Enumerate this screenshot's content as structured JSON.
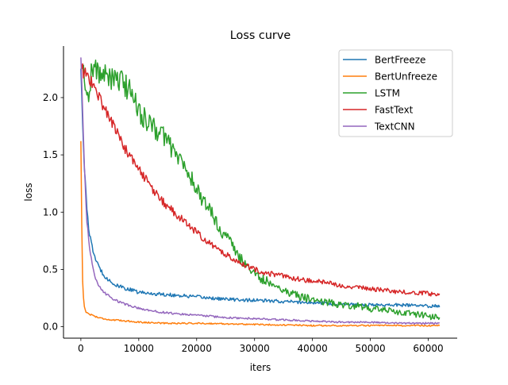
{
  "chart_data": {
    "type": "line",
    "title": "Loss curve",
    "xlabel": "iters",
    "ylabel": "loss",
    "xlim": [
      -3000,
      65000
    ],
    "ylim": [
      -0.1,
      2.45
    ],
    "xticks": [
      0,
      10000,
      20000,
      30000,
      40000,
      50000,
      60000
    ],
    "yticks": [
      0.0,
      0.5,
      1.0,
      1.5,
      2.0
    ],
    "xtick_labels": [
      "0",
      "10000",
      "20000",
      "30000",
      "40000",
      "50000",
      "60000"
    ],
    "ytick_labels": [
      "0.0",
      "0.5",
      "1.0",
      "1.5",
      "2.0"
    ],
    "grid": false,
    "legend_position": "top-right",
    "series": [
      {
        "name": "BertFreeze",
        "color": "#1f77b4",
        "x": [
          0,
          500,
          1000,
          1500,
          2000,
          2500,
          3000,
          4000,
          5000,
          6000,
          8000,
          10000,
          12000,
          15000,
          20000,
          25000,
          30000,
          35000,
          40000,
          45000,
          50000,
          55000,
          60000,
          62000
        ],
        "y": [
          2.25,
          1.5,
          1.05,
          0.8,
          0.68,
          0.6,
          0.53,
          0.45,
          0.4,
          0.36,
          0.33,
          0.3,
          0.29,
          0.28,
          0.26,
          0.24,
          0.23,
          0.22,
          0.21,
          0.2,
          0.19,
          0.19,
          0.18,
          0.18
        ]
      },
      {
        "name": "BertUnfreeze",
        "color": "#ff7f0e",
        "x": [
          0,
          150,
          300,
          500,
          800,
          1000,
          2000,
          3000,
          5000,
          8000,
          10000,
          15000,
          20000,
          30000,
          40000,
          50000,
          60000,
          62000
        ],
        "y": [
          1.62,
          0.9,
          0.4,
          0.2,
          0.14,
          0.12,
          0.1,
          0.08,
          0.06,
          0.05,
          0.04,
          0.03,
          0.03,
          0.02,
          0.01,
          0.01,
          0.01,
          0.01
        ]
      },
      {
        "name": "LSTM",
        "color": "#2ca02c",
        "x": [
          0,
          500,
          1000,
          1200,
          2000,
          3000,
          4000,
          5000,
          6000,
          7000,
          8000,
          9000,
          10000,
          11000,
          12000,
          13000,
          14000,
          15000,
          16000,
          17000,
          18000,
          19000,
          20000,
          21000,
          22000,
          23000,
          24000,
          25000,
          26000,
          27000,
          28000,
          29000,
          30000,
          32000,
          34000,
          36000,
          38000,
          40000,
          42000,
          44000,
          46000,
          48000,
          50000,
          52000,
          54000,
          56000,
          58000,
          60000,
          62000
        ],
        "y": [
          2.25,
          2.2,
          2.1,
          2.0,
          2.28,
          2.22,
          2.18,
          2.2,
          2.12,
          2.15,
          2.08,
          2.05,
          1.88,
          1.82,
          1.75,
          1.72,
          1.68,
          1.63,
          1.52,
          1.48,
          1.38,
          1.3,
          1.2,
          1.1,
          1.05,
          0.95,
          0.85,
          0.8,
          0.72,
          0.62,
          0.57,
          0.52,
          0.45,
          0.4,
          0.35,
          0.3,
          0.26,
          0.24,
          0.22,
          0.2,
          0.19,
          0.18,
          0.16,
          0.15,
          0.13,
          0.12,
          0.11,
          0.09,
          0.08
        ]
      },
      {
        "name": "FastText",
        "color": "#d62728",
        "x": [
          0,
          1000,
          2000,
          3000,
          4000,
          5000,
          6000,
          7000,
          8000,
          9000,
          10000,
          12000,
          14000,
          16000,
          18000,
          20000,
          22000,
          24000,
          26000,
          28000,
          30000,
          32000,
          34000,
          36000,
          38000,
          40000,
          44000,
          48000,
          52000,
          56000,
          60000,
          62000
        ],
        "y": [
          2.25,
          2.2,
          2.12,
          2.02,
          1.92,
          1.82,
          1.72,
          1.62,
          1.52,
          1.45,
          1.38,
          1.22,
          1.1,
          1.0,
          0.92,
          0.82,
          0.74,
          0.66,
          0.6,
          0.55,
          0.5,
          0.47,
          0.45,
          0.43,
          0.41,
          0.4,
          0.37,
          0.34,
          0.32,
          0.3,
          0.29,
          0.28
        ]
      },
      {
        "name": "TextCNN",
        "color": "#9467bd",
        "x": [
          0,
          300,
          600,
          1000,
          1500,
          2000,
          2500,
          3000,
          4000,
          5000,
          6000,
          8000,
          10000,
          12000,
          15000,
          20000,
          25000,
          30000,
          35000,
          40000,
          45000,
          50000,
          55000,
          60000,
          62000
        ],
        "y": [
          2.35,
          1.9,
          1.4,
          0.95,
          0.7,
          0.52,
          0.42,
          0.36,
          0.3,
          0.26,
          0.23,
          0.19,
          0.16,
          0.14,
          0.12,
          0.1,
          0.08,
          0.07,
          0.06,
          0.05,
          0.04,
          0.04,
          0.03,
          0.03,
          0.03
        ]
      }
    ]
  }
}
